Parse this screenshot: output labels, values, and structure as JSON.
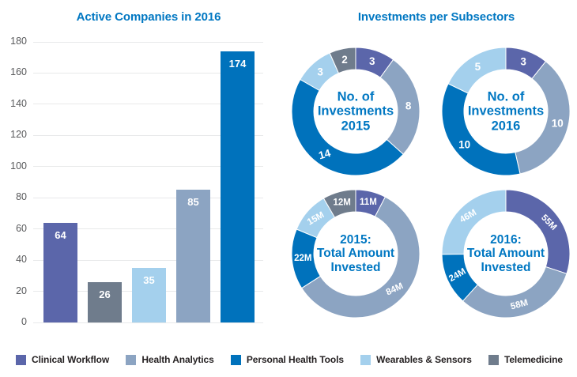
{
  "colors": {
    "accent_blue": "#0077c2",
    "axis_text": "#58595b",
    "gridline": "#e8e9ea",
    "legend_text": "#231f20",
    "background": "#ffffff",
    "label_text": "#ffffff"
  },
  "series_colors": {
    "Clinical Workflow": "#5b66aa",
    "Health Analytics": "#8ca4c2",
    "Personal Health Tools": "#0072bc",
    "Wearables & Sensors": "#a4d0ed",
    "Telemedicine": "#6f7c8c"
  },
  "legend": {
    "items": [
      "Clinical Workflow",
      "Health Analytics",
      "Personal Health Tools",
      "Wearables & Sensors",
      "Telemedicine"
    ]
  },
  "chart_data": [
    {
      "type": "bar",
      "title": "Active Companies in 2016",
      "categories": [
        "Clinical Workflow",
        "Telemedicine",
        "Wearables & Sensors",
        "Health Analytics",
        "Personal Health Tools"
      ],
      "values": [
        64,
        26,
        35,
        85,
        174
      ],
      "ylim": [
        0,
        180
      ],
      "ytick_step": 20,
      "grid": true,
      "legend_position": "bottom"
    },
    {
      "type": "pie",
      "variant": "donut",
      "title": "Investments per Subsectors",
      "donuts": [
        {
          "name": "No. of Investments 2015",
          "center_lines": [
            "No. of",
            "Investments",
            "2015"
          ],
          "style": "counts",
          "segments": [
            {
              "series": "Clinical Workflow",
              "value": 3,
              "label": "3",
              "rot": 0
            },
            {
              "series": "Health Analytics",
              "value": 8,
              "label": "8",
              "rot": 0
            },
            {
              "series": "Personal Health Tools",
              "value": 14,
              "label": "14",
              "rot": -15
            },
            {
              "series": "Wearables & Sensors",
              "value": 3,
              "label": "3",
              "rot": 0
            },
            {
              "series": "Telemedicine",
              "value": 2,
              "label": "2",
              "rot": 0
            }
          ]
        },
        {
          "name": "No. of Investments 2016",
          "center_lines": [
            "No. of",
            "Investments",
            "2016"
          ],
          "style": "counts",
          "segments": [
            {
              "series": "Clinical Workflow",
              "value": 3,
              "label": "3",
              "rot": 0
            },
            {
              "series": "Health Analytics",
              "value": 10,
              "label": "10",
              "rot": 0
            },
            {
              "series": "Personal Health Tools",
              "value": 10,
              "label": "10",
              "rot": 0
            },
            {
              "series": "Wearables & Sensors",
              "value": 5,
              "label": "5",
              "rot": 0
            }
          ]
        },
        {
          "name": "2015: Total Amount Invested",
          "center_lines": [
            "2015:",
            "Total Amount",
            "Invested"
          ],
          "style": "amounts",
          "segments": [
            {
              "series": "Clinical Workflow",
              "value": 11,
              "label": "11M",
              "rot": 0
            },
            {
              "series": "Health Analytics",
              "value": 84,
              "label": "84M",
              "rot": -25
            },
            {
              "series": "Personal Health Tools",
              "value": 22,
              "label": "22M",
              "rot": 0
            },
            {
              "series": "Wearables & Sensors",
              "value": 15,
              "label": "15M",
              "rot": -30
            },
            {
              "series": "Telemedicine",
              "value": 12,
              "label": "12M",
              "rot": 0
            }
          ]
        },
        {
          "name": "2016: Total Amount Invested",
          "center_lines": [
            "2016:",
            "Total Amount",
            "Invested"
          ],
          "style": "amounts",
          "segments": [
            {
              "series": "Clinical Workflow",
              "value": 55,
              "label": "55M",
              "rot": 45
            },
            {
              "series": "Health Analytics",
              "value": 58,
              "label": "58M",
              "rot": -15
            },
            {
              "series": "Personal Health Tools",
              "value": 24,
              "label": "24M",
              "rot": -30
            },
            {
              "series": "Wearables & Sensors",
              "value": 46,
              "label": "46M",
              "rot": -30
            }
          ]
        }
      ]
    }
  ]
}
